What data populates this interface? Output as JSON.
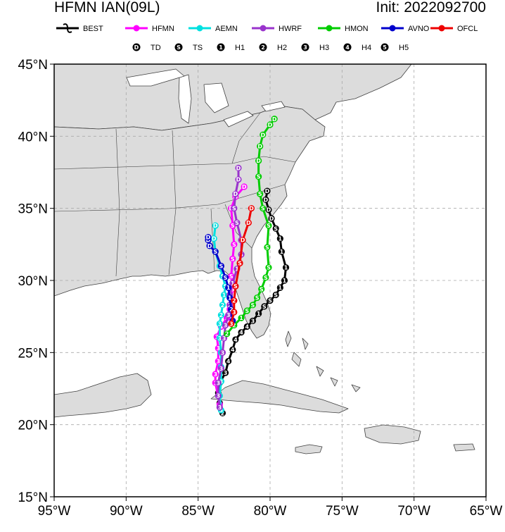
{
  "header": {
    "title": "HFMN IAN(09L)",
    "init": "Init: 2022092700"
  },
  "legend_models": [
    {
      "label": "BEST",
      "color": "#000000"
    },
    {
      "label": "HFMN",
      "color": "#ff00ff"
    },
    {
      "label": "AEMN",
      "color": "#00e0e0"
    },
    {
      "label": "HWRF",
      "color": "#9933cc"
    },
    {
      "label": "HMON",
      "color": "#00cc00"
    },
    {
      "label": "AVNO",
      "color": "#0000cc"
    },
    {
      "label": "OFCL",
      "color": "#ee0000"
    }
  ],
  "legend_intensity": [
    {
      "symbol": "D",
      "label": "TD"
    },
    {
      "symbol": "S",
      "label": "TS"
    },
    {
      "symbol": "1",
      "label": "H1"
    },
    {
      "symbol": "2",
      "label": "H2"
    },
    {
      "symbol": "3",
      "label": "H3"
    },
    {
      "symbol": "4",
      "label": "H4"
    },
    {
      "symbol": "5",
      "label": "H5"
    }
  ],
  "axes": {
    "lat_labels": [
      "45°N",
      "40°N",
      "35°N",
      "30°N",
      "25°N",
      "20°N",
      "15°N"
    ],
    "lon_labels": [
      "95°W",
      "90°W",
      "85°W",
      "80°W",
      "75°W",
      "70°W",
      "65°W"
    ],
    "lat_range": [
      15,
      45
    ],
    "lon_range": [
      -95,
      -65
    ],
    "grid": "dashed"
  },
  "colors": {
    "land": "#dcdcdc",
    "ocean": "#ffffff",
    "border": "#404040"
  },
  "tracks": [
    {
      "model": "BEST",
      "color": "#000000",
      "points": [
        [
          -83.3,
          20.8,
          "2"
        ],
        [
          -83.5,
          21.5,
          "3"
        ],
        [
          -83.6,
          22.2,
          "3"
        ],
        [
          -83.5,
          22.9,
          "3"
        ],
        [
          -83.1,
          23.6,
          "3"
        ],
        [
          -82.9,
          24.4,
          "4"
        ],
        [
          -82.6,
          25.2,
          "4"
        ],
        [
          -82.4,
          25.9,
          "4"
        ],
        [
          -82.0,
          26.4,
          "4"
        ],
        [
          -81.6,
          26.8,
          "4"
        ],
        [
          -81.2,
          27.2,
          "3"
        ],
        [
          -80.8,
          27.7,
          "1"
        ],
        [
          -80.4,
          28.2,
          "S"
        ],
        [
          -80.0,
          28.6,
          "S"
        ],
        [
          -79.6,
          29.0,
          "S"
        ],
        [
          -79.3,
          29.5,
          "1"
        ],
        [
          -79.0,
          30.0,
          "1"
        ],
        [
          -78.9,
          30.9,
          "1"
        ],
        [
          -79.2,
          32.0,
          "1"
        ],
        [
          -79.3,
          32.9,
          "1"
        ],
        [
          -79.6,
          33.6,
          "S"
        ],
        [
          -79.9,
          34.3,
          "D"
        ],
        [
          -80.1,
          34.9,
          "D"
        ],
        [
          -80.3,
          35.6,
          "D"
        ],
        [
          -80.2,
          36.2,
          "D"
        ]
      ]
    },
    {
      "model": "HFMN",
      "color": "#ff00ff",
      "points": [
        [
          -83.5,
          21.4,
          "3"
        ],
        [
          -83.8,
          22.9,
          "3"
        ],
        [
          -83.8,
          23.5,
          "3"
        ],
        [
          -83.6,
          24.4,
          "3"
        ],
        [
          -83.6,
          25.3,
          "3"
        ],
        [
          -83.7,
          26.1,
          "3"
        ],
        [
          -83.4,
          26.8,
          "4"
        ],
        [
          -83.0,
          27.4,
          "3"
        ],
        [
          -82.8,
          28.0,
          "2"
        ],
        [
          -82.7,
          28.7,
          "1"
        ],
        [
          -82.6,
          29.4,
          "S"
        ],
        [
          -82.7,
          30.3,
          "S"
        ],
        [
          -82.6,
          31.5,
          "S"
        ],
        [
          -82.5,
          32.5,
          "S"
        ],
        [
          -82.6,
          33.8,
          "S"
        ],
        [
          -82.7,
          35.0,
          "D"
        ],
        [
          -82.4,
          35.8,
          "D"
        ],
        [
          -81.8,
          36.5,
          "D"
        ]
      ]
    },
    {
      "model": "AEMN",
      "color": "#00e0e0",
      "points": [
        [
          -83.4,
          21.0,
          "3"
        ],
        [
          -83.5,
          22.0,
          "3"
        ],
        [
          -83.4,
          23.0,
          "3"
        ],
        [
          -83.4,
          24.0,
          "3"
        ],
        [
          -83.4,
          25.0,
          "3"
        ],
        [
          -83.5,
          26.0,
          "3"
        ],
        [
          -83.5,
          27.0,
          "3"
        ],
        [
          -83.4,
          27.6,
          "2"
        ],
        [
          -83.3,
          28.3,
          "2"
        ],
        [
          -83.2,
          29.0,
          "1"
        ],
        [
          -83.1,
          29.6,
          "S"
        ],
        [
          -83.3,
          30.3,
          "S"
        ],
        [
          -83.5,
          31.0,
          "S"
        ],
        [
          -83.8,
          32.0,
          "S"
        ],
        [
          -83.9,
          32.9,
          "D"
        ],
        [
          -83.8,
          33.8,
          "D"
        ]
      ]
    },
    {
      "model": "HWRF",
      "color": "#9933cc",
      "points": [
        [
          -83.5,
          21.2,
          "3"
        ],
        [
          -83.6,
          22.0,
          "3"
        ],
        [
          -83.6,
          22.9,
          "3"
        ],
        [
          -83.4,
          23.9,
          "3"
        ],
        [
          -83.3,
          25.0,
          "3"
        ],
        [
          -83.2,
          26.0,
          "3"
        ],
        [
          -83.1,
          26.9,
          "3"
        ],
        [
          -82.9,
          27.6,
          "3"
        ],
        [
          -82.8,
          28.3,
          "2"
        ],
        [
          -82.8,
          29.0,
          "1"
        ],
        [
          -82.6,
          29.8,
          "1"
        ],
        [
          -82.3,
          30.8,
          "1"
        ],
        [
          -82.0,
          31.8,
          "S"
        ],
        [
          -82.0,
          32.8,
          "S"
        ],
        [
          -82.3,
          34.0,
          "S"
        ],
        [
          -82.5,
          35.0,
          "S"
        ],
        [
          -82.4,
          36.0,
          "D"
        ],
        [
          -82.2,
          37.0,
          "D"
        ],
        [
          -82.2,
          37.8,
          "D"
        ]
      ]
    },
    {
      "model": "HMON",
      "color": "#00cc00",
      "points": [
        [
          -83.0,
          26.3,
          "2"
        ],
        [
          -82.5,
          26.9,
          "2"
        ],
        [
          -82.0,
          27.4,
          "1"
        ],
        [
          -81.6,
          27.9,
          "S"
        ],
        [
          -81.2,
          28.3,
          "S"
        ],
        [
          -80.9,
          28.8,
          "S"
        ],
        [
          -80.6,
          29.4,
          "S"
        ],
        [
          -80.3,
          30.2,
          "S"
        ],
        [
          -80.1,
          30.9,
          "S"
        ],
        [
          -80.2,
          32.3,
          "S"
        ],
        [
          -80.1,
          33.8,
          "S"
        ],
        [
          -80.5,
          35.0,
          "S"
        ],
        [
          -80.7,
          36.0,
          "S"
        ],
        [
          -80.8,
          37.2,
          "S"
        ],
        [
          -80.8,
          38.3,
          "D"
        ],
        [
          -80.7,
          39.3,
          "D"
        ],
        [
          -80.5,
          40.1,
          "D"
        ],
        [
          -80.0,
          40.8,
          "D"
        ],
        [
          -79.7,
          41.2,
          "D"
        ]
      ]
    },
    {
      "model": "AVNO",
      "color": "#0000cc",
      "points": [
        [
          -82.6,
          27.2,
          "1"
        ],
        [
          -82.7,
          28.0,
          "2"
        ],
        [
          -82.8,
          28.8,
          "1"
        ],
        [
          -82.9,
          29.5,
          "1"
        ],
        [
          -83.1,
          30.2,
          "S"
        ],
        [
          -83.4,
          31.0,
          "S"
        ],
        [
          -83.8,
          32.0,
          "S"
        ],
        [
          -84.2,
          32.4,
          "D"
        ],
        [
          -84.3,
          32.8,
          "D"
        ],
        [
          -84.3,
          33.0,
          "D"
        ]
      ]
    },
    {
      "model": "OFCL",
      "color": "#ee0000",
      "points": [
        [
          -82.7,
          27.0,
          "3"
        ],
        [
          -82.5,
          27.8,
          "3"
        ],
        [
          -82.5,
          28.6,
          "2"
        ],
        [
          -82.4,
          29.6,
          "S"
        ],
        [
          -82.1,
          31.2,
          "S"
        ],
        [
          -81.9,
          32.8,
          "D"
        ],
        [
          -81.5,
          34.0,
          "D"
        ],
        [
          -81.3,
          35.0,
          "D"
        ]
      ]
    }
  ]
}
